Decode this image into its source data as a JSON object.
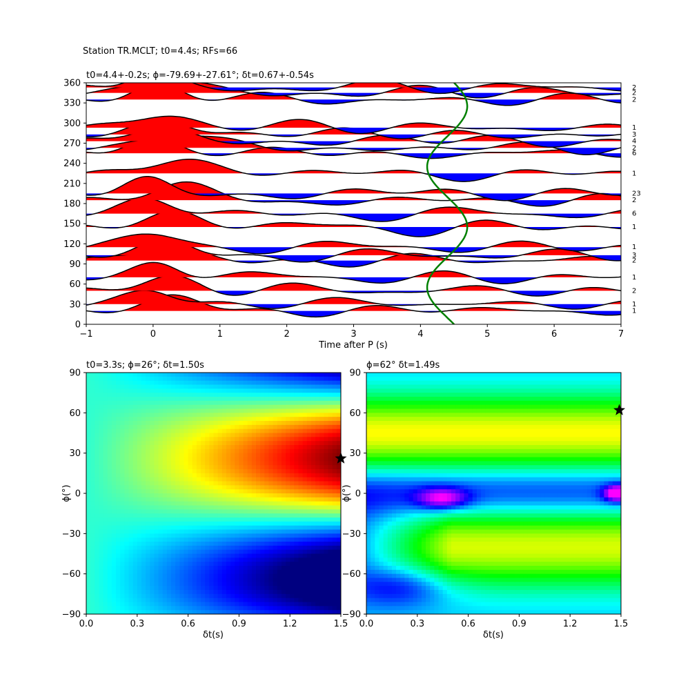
{
  "figure": {
    "suptitle": "Station TR.MCLT; t0=4.4s; RFs=66"
  },
  "chart_data": [
    {
      "type": "wiggle",
      "title": "t0=4.4+-0.2s; ϕ=-79.69+-27.61°; δt=0.67+-0.54s",
      "xlabel": "Time after P (s)",
      "ylabel": "",
      "xlim": [
        -1,
        7
      ],
      "ylim": [
        0,
        360
      ],
      "xticks": [
        "−1",
        "0",
        "1",
        "2",
        "3",
        "4",
        "5",
        "6",
        "7"
      ],
      "yticks": [
        "0",
        "30",
        "60",
        "90",
        "120",
        "150",
        "180",
        "210",
        "240",
        "270",
        "300",
        "330",
        "360"
      ],
      "positive_fill": "#ff0000",
      "negative_fill": "#0000ff",
      "model_curve_color": "#008000",
      "model_curve": {
        "center_time": 4.4,
        "amplitude": 0.3,
        "phase_deg": -80
      },
      "traces": [
        {
          "baz": 20,
          "count": "1"
        },
        {
          "baz": 30,
          "count": "1"
        },
        {
          "baz": 50,
          "count": "2"
        },
        {
          "baz": 70,
          "count": "1"
        },
        {
          "baz": 95,
          "count": "2"
        },
        {
          "baz": 103,
          "count": "3"
        },
        {
          "baz": 115,
          "count": "1"
        },
        {
          "baz": 145,
          "count": "1"
        },
        {
          "baz": 165,
          "count": "6"
        },
        {
          "baz": 185,
          "count": "2"
        },
        {
          "baz": 195,
          "count": "23"
        },
        {
          "baz": 225,
          "count": "1"
        },
        {
          "baz": 255,
          "count": "6"
        },
        {
          "baz": 263,
          "count": "2"
        },
        {
          "baz": 273,
          "count": "4"
        },
        {
          "baz": 283,
          "count": "3"
        },
        {
          "baz": 293,
          "count": "1"
        },
        {
          "baz": 335,
          "count": "2"
        },
        {
          "baz": 345,
          "count": "2"
        },
        {
          "baz": 353,
          "count": "2"
        }
      ]
    },
    {
      "type": "heatmap",
      "title": "t0=3.3s; ϕ=26°; δt=1.50s",
      "xlabel": "δt(s)",
      "ylabel": "ϕ(°)",
      "xlim": [
        0,
        1.5
      ],
      "ylim": [
        -90,
        90
      ],
      "xticks": [
        "0.0",
        "0.3",
        "0.6",
        "0.9",
        "1.2",
        "1.5"
      ],
      "yticks": [
        "−90",
        "−60",
        "−30",
        "0",
        "30",
        "60",
        "90"
      ],
      "colormap": "jet",
      "best": {
        "dt": 1.5,
        "phi": 26
      }
    },
    {
      "type": "heatmap",
      "title": "ϕ=62° δt=1.49s",
      "xlabel": "δt(s)",
      "ylabel": "ϕ(°)",
      "xlim": [
        0,
        1.5
      ],
      "ylim": [
        -90,
        90
      ],
      "xticks": [
        "0.0",
        "0.3",
        "0.6",
        "0.9",
        "1.2",
        "1.5"
      ],
      "yticks": [
        "−90",
        "−60",
        "−30",
        "0",
        "30",
        "60",
        "90"
      ],
      "colormap": "hsv",
      "best": {
        "dt": 1.49,
        "phi": 62
      }
    }
  ]
}
